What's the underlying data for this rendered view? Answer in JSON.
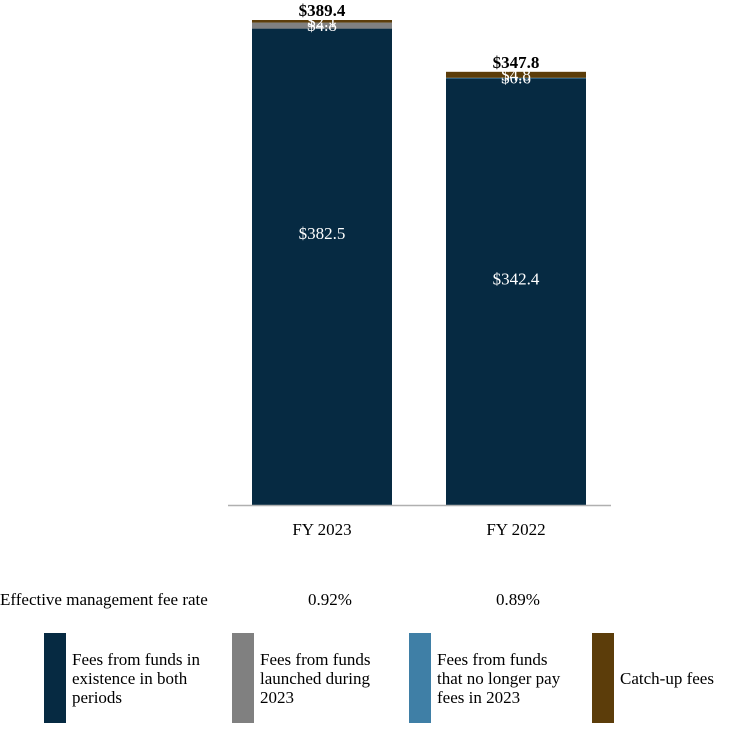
{
  "chart_data": {
    "type": "bar",
    "stacked": true,
    "categories": [
      "FY 2023",
      "FY 2022"
    ],
    "totals": [
      "$389.4",
      "$347.8"
    ],
    "ylim": [
      0,
      389.4
    ],
    "series": [
      {
        "name": "Fees from funds in existence in both periods",
        "color": "#062a42",
        "values": [
          382.5,
          342.4
        ],
        "labels": [
          "$382.5",
          "$342.4"
        ]
      },
      {
        "name": "Fees from funds launched during 2023",
        "color": "#808080",
        "values": [
          4.8,
          0
        ],
        "labels": [
          "$4.8",
          ""
        ]
      },
      {
        "name": "Fees from funds that no longer pay fees in 2023",
        "color": "#3f7fa6",
        "values": [
          0,
          0.6
        ],
        "labels": [
          "",
          "$0.6"
        ]
      },
      {
        "name": "Catch-up fees",
        "color": "#5c3d0a",
        "values": [
          2.1,
          4.8
        ],
        "labels": [
          "$2.1",
          "$4.8"
        ]
      }
    ]
  },
  "fee_rate": {
    "label": "Effective management fee rate",
    "values": [
      "0.92%",
      "0.89%"
    ]
  },
  "legend": [
    {
      "line1": "Fees from funds in",
      "line2": "existence in both",
      "line3": "periods",
      "color": "#062a42"
    },
    {
      "line1": "Fees from funds",
      "line2": "launched during",
      "line3": "2023",
      "color": "#808080"
    },
    {
      "line1": "Fees from funds",
      "line2": "that no longer pay",
      "line3": "fees in 2023",
      "color": "#3f7fa6"
    },
    {
      "line1": "Catch-up fees",
      "line2": "",
      "line3": "",
      "color": "#5c3d0a"
    }
  ]
}
